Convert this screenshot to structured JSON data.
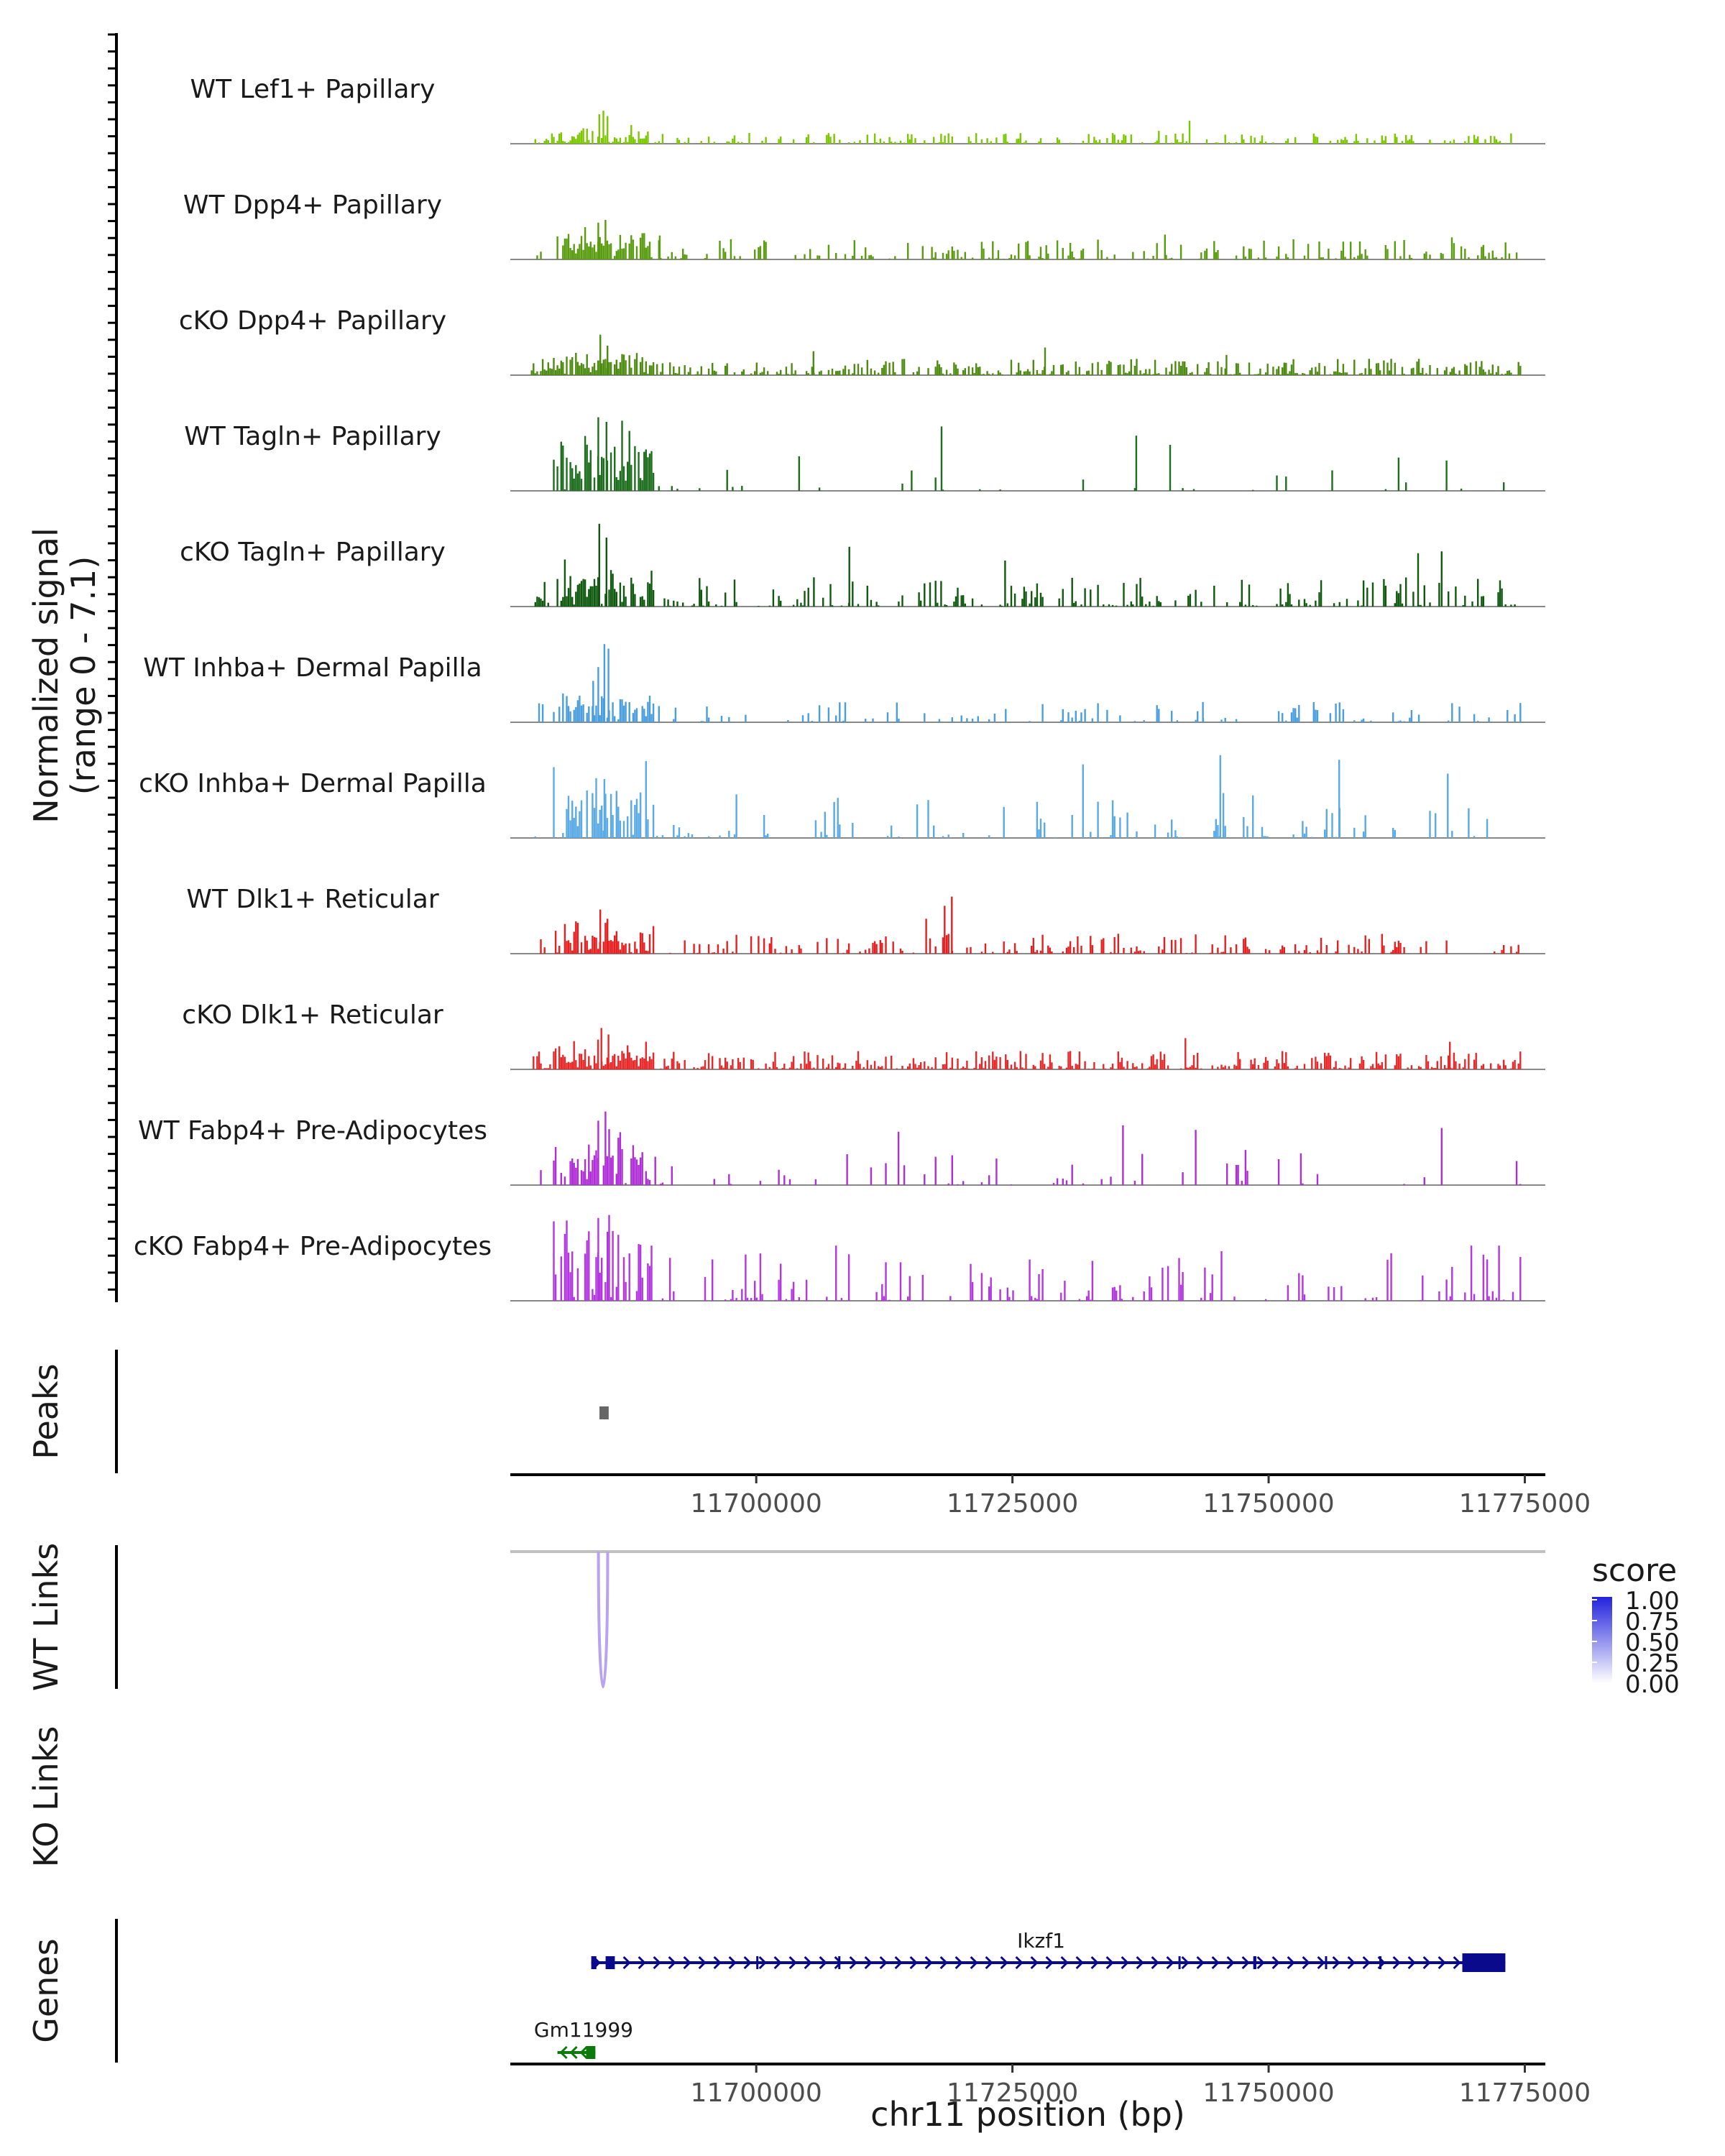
{
  "chart_data": {
    "type": "coverage",
    "chromosome": "chr11",
    "region": [
      11676000,
      11777000
    ],
    "y_axis_label_line1": "Normalized signal",
    "y_axis_label_line2": "(range 0 - 7.1)",
    "ylim": [
      0,
      7.1
    ],
    "x_axis_label": "chr11 position (bp)",
    "x_ticks": [
      11700000,
      11725000,
      11750000,
      11775000
    ],
    "tracks": [
      {
        "name": "WT Lef1+ Papillary",
        "color": "#7bc800",
        "density": 0.55,
        "scale": 0.12,
        "peaks": [
          [
            11684600,
            0.32
          ],
          [
            11685000,
            0.36
          ],
          [
            11685400,
            0.3
          ],
          [
            11739200,
            0.14
          ],
          [
            11742200,
            0.25
          ]
        ]
      },
      {
        "name": "WT Dpp4+ Papillary",
        "color": "#5a9c10",
        "density": 0.45,
        "scale": 0.22,
        "peaks": [
          [
            11684500,
            0.4
          ],
          [
            11685200,
            0.43
          ],
          [
            11690500,
            0.26
          ],
          [
            11739800,
            0.27
          ],
          [
            11767800,
            0.24
          ]
        ]
      },
      {
        "name": "cKO Dpp4+ Papillary",
        "color": "#4c8c10",
        "density": 0.75,
        "scale": 0.18,
        "peaks": [
          [
            11684700,
            0.44
          ],
          [
            11685400,
            0.32
          ],
          [
            11705500,
            0.26
          ],
          [
            11728100,
            0.3
          ],
          [
            11745800,
            0.22
          ]
        ]
      },
      {
        "name": "WT Tagln+ Papillary",
        "color": "#1d6f1d",
        "density": 0.1,
        "scale": 0.45,
        "peaks": [
          [
            11684500,
            0.8
          ],
          [
            11685300,
            0.75
          ],
          [
            11718000,
            0.7
          ],
          [
            11737000,
            0.6
          ],
          [
            11740300,
            0.5
          ]
        ]
      },
      {
        "name": "cKO Tagln+ Papillary",
        "color": "#0f5a0f",
        "density": 0.45,
        "scale": 0.32,
        "peaks": [
          [
            11684600,
            0.9
          ],
          [
            11685300,
            0.75
          ],
          [
            11709000,
            0.65
          ],
          [
            11724200,
            0.5
          ],
          [
            11764500,
            0.58
          ],
          [
            11766800,
            0.6
          ]
        ]
      },
      {
        "name": "WT Inhba+ Dermal Papilla",
        "color": "#4a9ede",
        "density": 0.25,
        "scale": 0.22,
        "peaks": [
          [
            11684500,
            0.6
          ],
          [
            11685100,
            0.85
          ],
          [
            11685500,
            0.8
          ],
          [
            11684000,
            0.45
          ],
          [
            11743500,
            0.22
          ]
        ]
      },
      {
        "name": "cKO Inhba+ Dermal Papilla",
        "color": "#5aaae6",
        "density": 0.22,
        "scale": 0.5,
        "peaks": [
          [
            11684300,
            0.65
          ],
          [
            11685100,
            0.64
          ],
          [
            11731800,
            0.8
          ],
          [
            11745200,
            0.9
          ],
          [
            11756800,
            0.85
          ],
          [
            11767400,
            0.7
          ]
        ]
      },
      {
        "name": "WT Dlk1+ Reticular",
        "color": "#e62020",
        "density": 0.4,
        "scale": 0.22,
        "peaks": [
          [
            11684700,
            0.48
          ],
          [
            11685400,
            0.38
          ],
          [
            11716500,
            0.38
          ],
          [
            11718300,
            0.52
          ],
          [
            11719000,
            0.62
          ]
        ]
      },
      {
        "name": "cKO Dlk1+ Reticular",
        "color": "#e82828",
        "density": 0.8,
        "scale": 0.2,
        "peaks": [
          [
            11684800,
            0.45
          ],
          [
            11685500,
            0.38
          ],
          [
            11741800,
            0.34
          ],
          [
            11767600,
            0.3
          ]
        ]
      },
      {
        "name": "WT Fabp4+ Pre-Adipocytes",
        "color": "#b02ed8",
        "density": 0.12,
        "scale": 0.4,
        "peaks": [
          [
            11684500,
            0.7
          ],
          [
            11685200,
            0.8
          ],
          [
            11713800,
            0.58
          ],
          [
            11735700,
            0.65
          ],
          [
            11742800,
            0.6
          ],
          [
            11766800,
            0.62
          ]
        ]
      },
      {
        "name": "cKO Fabp4+ Pre-Adipocytes",
        "color": "#b436e0",
        "density": 0.3,
        "scale": 0.55,
        "peaks": [
          [
            11684500,
            0.9
          ],
          [
            11685400,
            0.75
          ],
          [
            11689700,
            0.6
          ],
          [
            11707700,
            0.6
          ],
          [
            11769700,
            0.6
          ],
          [
            11772400,
            0.6
          ]
        ]
      }
    ],
    "peaks_track": {
      "label": "Peaks",
      "regions": [
        [
          11684700,
          11685600
        ]
      ],
      "color": "#666666"
    },
    "links_tracks": [
      {
        "label": "WT Links",
        "links": [
          {
            "start": 11684600,
            "end": 11685500,
            "score": 0.5
          }
        ]
      },
      {
        "label": "KO Links",
        "links": []
      }
    ],
    "legend": {
      "title": "score",
      "ticks": [
        "1.00",
        "0.75",
        "0.50",
        "0.25",
        "0.00"
      ],
      "low_color": "#ffffff",
      "high_color": "#2222dd"
    },
    "genes_track": {
      "label": "Genes",
      "genes": [
        {
          "name": "Ikzf1",
          "start": 11683900,
          "end": 11773100,
          "strand": "+",
          "color": "#0a0a8c",
          "exons": [
            [
              11683900,
              11684400
            ],
            [
              11685300,
              11686200
            ],
            [
              11700000,
              11700200
            ],
            [
              11708000,
              11708200
            ],
            [
              11741200,
              11741400
            ],
            [
              11748500,
              11748800
            ],
            [
              11755500,
              11755700
            ],
            [
              11760800,
              11761000
            ],
            [
              11768900,
              11773100
            ]
          ]
        },
        {
          "name": "Gm11999",
          "start": 11680600,
          "end": 11684300,
          "strand": "-",
          "color": "#0b7a0b",
          "exons": [
            [
              11683400,
              11684300
            ]
          ]
        }
      ]
    }
  }
}
